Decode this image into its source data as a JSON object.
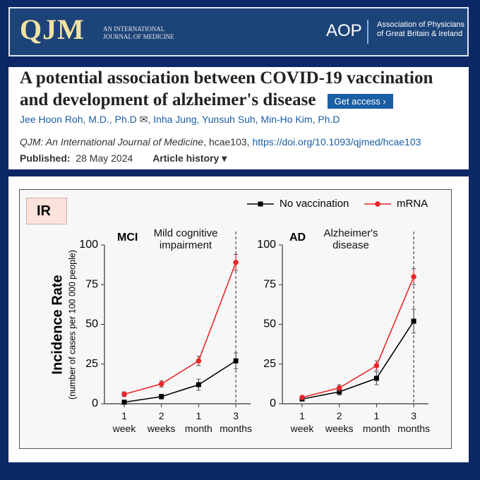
{
  "header": {
    "logo": "QJM",
    "tagline": "AN INTERNATIONAL JOURNAL OF MEDICINE",
    "society_logo": "AOP",
    "society": "Association of Physicians of Great Britain & Ireland"
  },
  "article": {
    "title": "A potential association between COVID-19 vaccination and development of alzheimer's disease",
    "access_button": "Get access",
    "authors_first": "Jee Hoon Roh, M.D., Ph.D",
    "authors_rest": ", Inha Jung, Yunsuh Suh, Min-Ho Kim, Ph.D",
    "citation_journal": "QJM: An International Journal of Medicine",
    "citation_rest": ", hcae103, ",
    "doi": "https://doi.org/10.1093/qjmed/hcae103",
    "published_label": "Published:",
    "published_date": "28 May 2024",
    "history": "Article history"
  },
  "figure": {
    "panel_label": "IR",
    "y_label": "Incidence Rate",
    "y_sublabel": "(number of cases per 100 000 people)"
  },
  "chart_data": [
    {
      "type": "line",
      "title": "MCI",
      "annotation": "Mild cognitive impairment",
      "categories": [
        "1 week",
        "2 weeks",
        "1 month",
        "3 months"
      ],
      "series": [
        {
          "name": "No vaccination",
          "color": "#000000",
          "marker": "square",
          "values": [
            1,
            4.5,
            12,
            27
          ],
          "errors": [
            1,
            1.5,
            3.5,
            5
          ]
        },
        {
          "name": "mRNA",
          "color": "#e8262b",
          "marker": "circle",
          "values": [
            6,
            12.5,
            27,
            89
          ],
          "errors": [
            1.5,
            2,
            3,
            5
          ]
        }
      ],
      "ylim": [
        0,
        100
      ],
      "yticks": [
        0,
        25,
        50,
        75,
        100
      ],
      "legend": "top"
    },
    {
      "type": "line",
      "title": "AD",
      "annotation": "Alzheimer's disease",
      "categories": [
        "1 week",
        "2 weeks",
        "1 month",
        "3 months"
      ],
      "series": [
        {
          "name": "No vaccination",
          "color": "#000000",
          "marker": "square",
          "values": [
            3,
            7.5,
            16,
            52
          ],
          "errors": [
            1,
            2,
            4,
            7.5
          ]
        },
        {
          "name": "mRNA",
          "color": "#e8262b",
          "marker": "circle",
          "values": [
            4,
            10,
            24,
            80
          ],
          "errors": [
            1,
            2,
            3,
            5
          ]
        }
      ],
      "ylim": [
        0,
        100
      ],
      "yticks": [
        0,
        25,
        50,
        75,
        100
      ]
    }
  ]
}
